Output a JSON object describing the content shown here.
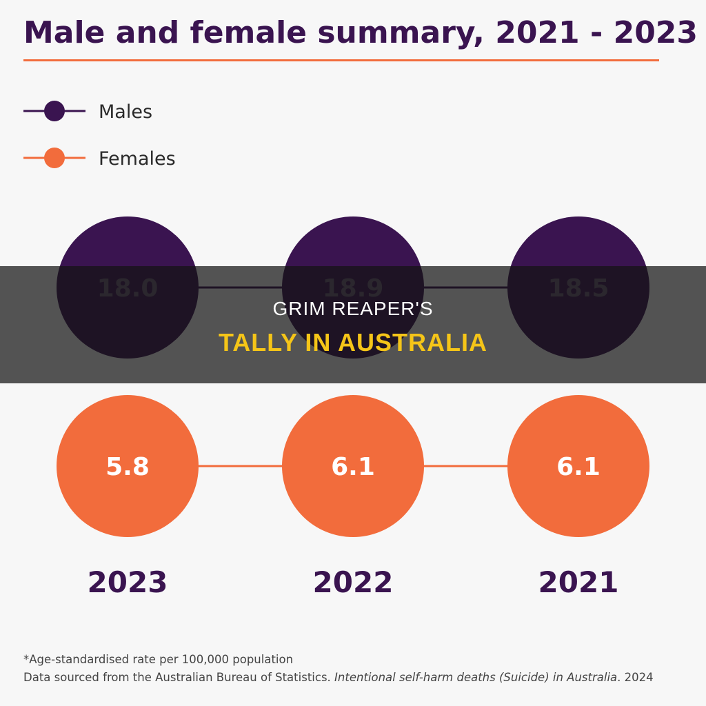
{
  "title": "Male and female summary, 2021 - 2023",
  "colors": {
    "males": "#3a1450",
    "females": "#f26c3c",
    "banner_accent": "#f5c518"
  },
  "chart_data": {
    "type": "line",
    "title": "Male and female summary, 2021 - 2023",
    "categories": [
      "2023",
      "2022",
      "2021"
    ],
    "series": [
      {
        "name": "Males",
        "values": [
          18.0,
          18.9,
          18.5
        ],
        "labels": [
          "18.0",
          "18.9",
          "18.5"
        ],
        "color": "#3a1450"
      },
      {
        "name": "Females",
        "values": [
          5.8,
          6.1,
          6.1
        ],
        "labels": [
          "5.8",
          "6.1",
          "6.1"
        ],
        "color": "#f26c3c"
      }
    ],
    "legend_position": "top-left"
  },
  "footnote": "*Age-standardised rate per 100,000 population",
  "source": {
    "prefix": "Data sourced from the Australian Bureau of Statistics. ",
    "publication": "Intentional self-harm deaths (Suicide) in Australia",
    "suffix": ". 2024"
  },
  "banner": {
    "line1": "GRIM REAPER'S",
    "line2": "TALLY IN AUSTRALIA"
  }
}
